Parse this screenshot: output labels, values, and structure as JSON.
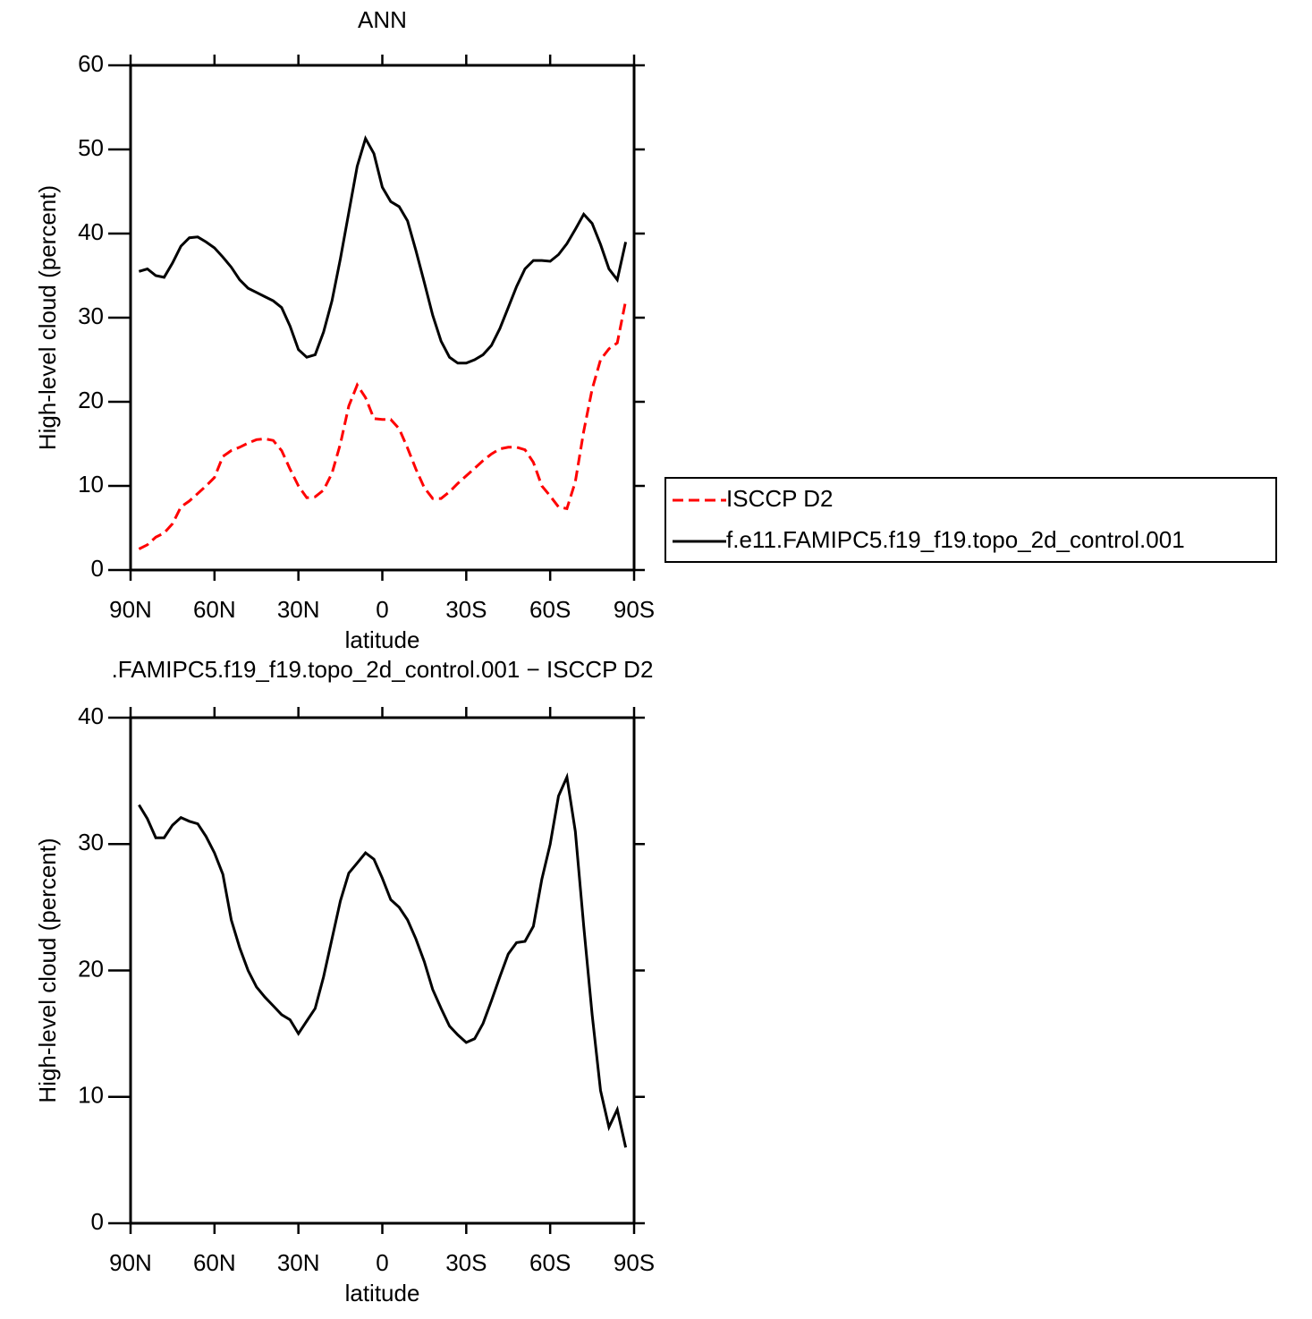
{
  "chart_data": [
    {
      "type": "line",
      "title": "ANN",
      "x_label": "latitude",
      "y_label": "High-level cloud (percent)",
      "x": [
        87,
        84,
        81,
        78,
        75,
        72,
        69,
        66,
        63,
        60,
        57,
        54,
        51,
        48,
        45,
        42,
        39,
        36,
        33,
        30,
        27,
        24,
        21,
        18,
        15,
        12,
        9,
        6,
        3,
        0,
        -3,
        -6,
        -9,
        -12,
        -15,
        -18,
        -21,
        -24,
        -27,
        -30,
        -33,
        -36,
        -39,
        -42,
        -45,
        -48,
        -51,
        -54,
        -57,
        -60,
        -63,
        -66,
        -69,
        -72,
        -75,
        -78,
        -81,
        -84,
        -87
      ],
      "xlim": [
        90,
        -90
      ],
      "xticks": [
        {
          "value": 90,
          "label": "90N"
        },
        {
          "value": 60,
          "label": "60N"
        },
        {
          "value": 30,
          "label": "30N"
        },
        0,
        {
          "value": -30,
          "label": "30S"
        },
        {
          "value": -60,
          "label": "60S"
        },
        {
          "value": -90,
          "label": "90S"
        }
      ],
      "ylim": [
        0,
        60
      ],
      "yticks": [
        0,
        10,
        20,
        30,
        40,
        50,
        60
      ],
      "legend": "right",
      "series": [
        {
          "name": "ISCCP D2",
          "color": "#ff0000",
          "dashed": true,
          "values": [
            2.5,
            3.0,
            3.9,
            4.4,
            5.5,
            7.5,
            8.2,
            9.1,
            10,
            11,
            13.5,
            14.2,
            14.6,
            15.1,
            15.5,
            15.6,
            15.4,
            14.2,
            12,
            10,
            8.6,
            8.7,
            9.5,
            11.5,
            15,
            19.5,
            22,
            20.5,
            18,
            17.9,
            17.9,
            16.8,
            14.5,
            12,
            9.8,
            8.5,
            8.5,
            9.3,
            10.3,
            11.2,
            12.1,
            13,
            13.8,
            14.4,
            14.6,
            14.6,
            14.3,
            12.8,
            10,
            8.8,
            7.5,
            7.3,
            10.5,
            16.5,
            21.5,
            25,
            26.3,
            27,
            32
          ]
        },
        {
          "name": "f.e11.FAMIPC5.f19_f19.topo_2d_control.001",
          "color": "#000000",
          "dashed": false,
          "values": [
            35.5,
            35.8,
            35,
            34.8,
            36.5,
            38.5,
            39.5,
            39.6,
            39,
            38.3,
            37.2,
            36,
            34.5,
            33.5,
            33,
            32.5,
            32,
            31.2,
            29,
            26.2,
            25.3,
            25.6,
            28.3,
            32,
            37,
            42.5,
            48,
            51.3,
            49.5,
            45.5,
            43.8,
            43.2,
            41.5,
            38,
            34.2,
            30.3,
            27.2,
            25.3,
            24.6,
            24.6,
            25,
            25.6,
            26.7,
            28.7,
            31.2,
            33.7,
            35.8,
            36.8,
            36.8,
            36.7,
            37.5,
            38.8,
            40.5,
            42.3,
            41.2,
            38.7,
            35.8,
            34.5,
            39
          ]
        }
      ]
    },
    {
      "type": "line",
      "title": ".FAMIPC5.f19_f19.topo_2d_control.001 − ISCCP D2",
      "x_label": "latitude",
      "y_label": "High-level cloud (percent)",
      "x": [
        87,
        84,
        81,
        78,
        75,
        72,
        69,
        66,
        63,
        60,
        57,
        54,
        51,
        48,
        45,
        42,
        39,
        36,
        33,
        30,
        27,
        24,
        21,
        18,
        15,
        12,
        9,
        6,
        3,
        0,
        -3,
        -6,
        -9,
        -12,
        -15,
        -18,
        -21,
        -24,
        -27,
        -30,
        -33,
        -36,
        -39,
        -42,
        -45,
        -48,
        -51,
        -54,
        -57,
        -60,
        -63,
        -66,
        -69,
        -72,
        -75,
        -78,
        -81,
        -84,
        -87
      ],
      "xlim": [
        90,
        -90
      ],
      "xticks": [
        {
          "value": 90,
          "label": "90N"
        },
        {
          "value": 60,
          "label": "60N"
        },
        {
          "value": 30,
          "label": "30N"
        },
        0,
        {
          "value": -30,
          "label": "30S"
        },
        {
          "value": -60,
          "label": "60S"
        },
        {
          "value": -90,
          "label": "90S"
        }
      ],
      "ylim": [
        0,
        40
      ],
      "yticks": [
        0,
        10,
        20,
        30,
        40
      ],
      "series": [
        {
          "color": "#000000",
          "dashed": false,
          "values": [
            33.1,
            32,
            30.5,
            30.5,
            31.5,
            32.1,
            31.8,
            31.6,
            30.6,
            29.3,
            27.6,
            24,
            21.8,
            20,
            18.7,
            17.9,
            17.2,
            16.5,
            16.1,
            15,
            16,
            17,
            19.5,
            22.5,
            25.5,
            27.7,
            28.5,
            29.3,
            28.8,
            27.3,
            25.6,
            25,
            24,
            22.5,
            20.7,
            18.5,
            17,
            15.6,
            14.9,
            14.3,
            14.6,
            15.8,
            17.6,
            19.5,
            21.3,
            22.2,
            22.3,
            23.5,
            27.2,
            30,
            33.8,
            35.3,
            31,
            23.5,
            16.5,
            10.5,
            7.6,
            9.0,
            6
          ]
        }
      ]
    }
  ]
}
